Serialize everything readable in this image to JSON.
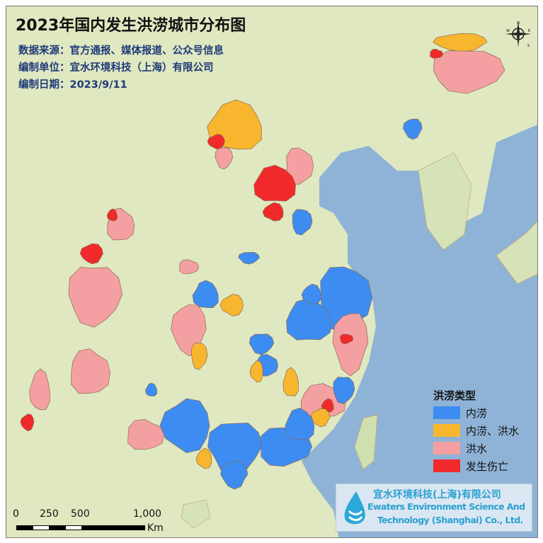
{
  "title": "2023年国内发生洪涝城市分布图",
  "info": {
    "source": "数据来源：官方通报、媒体报道、公众号信息",
    "org": "编制单位：宜水环境科技（上海）有限公司",
    "date": "编制日期：2023/9/11"
  },
  "legend": {
    "title": "洪涝类型",
    "items": [
      {
        "label": "内涝",
        "color": "#3d8cf2"
      },
      {
        "label": "内涝、洪水",
        "color": "#f8b62e"
      },
      {
        "label": "洪水",
        "color": "#f4a0a2"
      },
      {
        "label": "发生伤亡",
        "color": "#f02a2a"
      }
    ]
  },
  "logo": {
    "cn": "宜水环境科技(上海)有限公司",
    "en1": "Ewaters Environment Science And",
    "en2": "Technology (Shanghai) Co., Ltd."
  },
  "scale": {
    "ticks": [
      "0",
      "250",
      "500",
      "1,000"
    ],
    "unit": "Km"
  },
  "compass": {
    "n": "N",
    "e": "E",
    "s": "S",
    "w": "W"
  },
  "colors": {
    "land": "#dfe8c0",
    "sea": "#8fb3d6"
  }
}
